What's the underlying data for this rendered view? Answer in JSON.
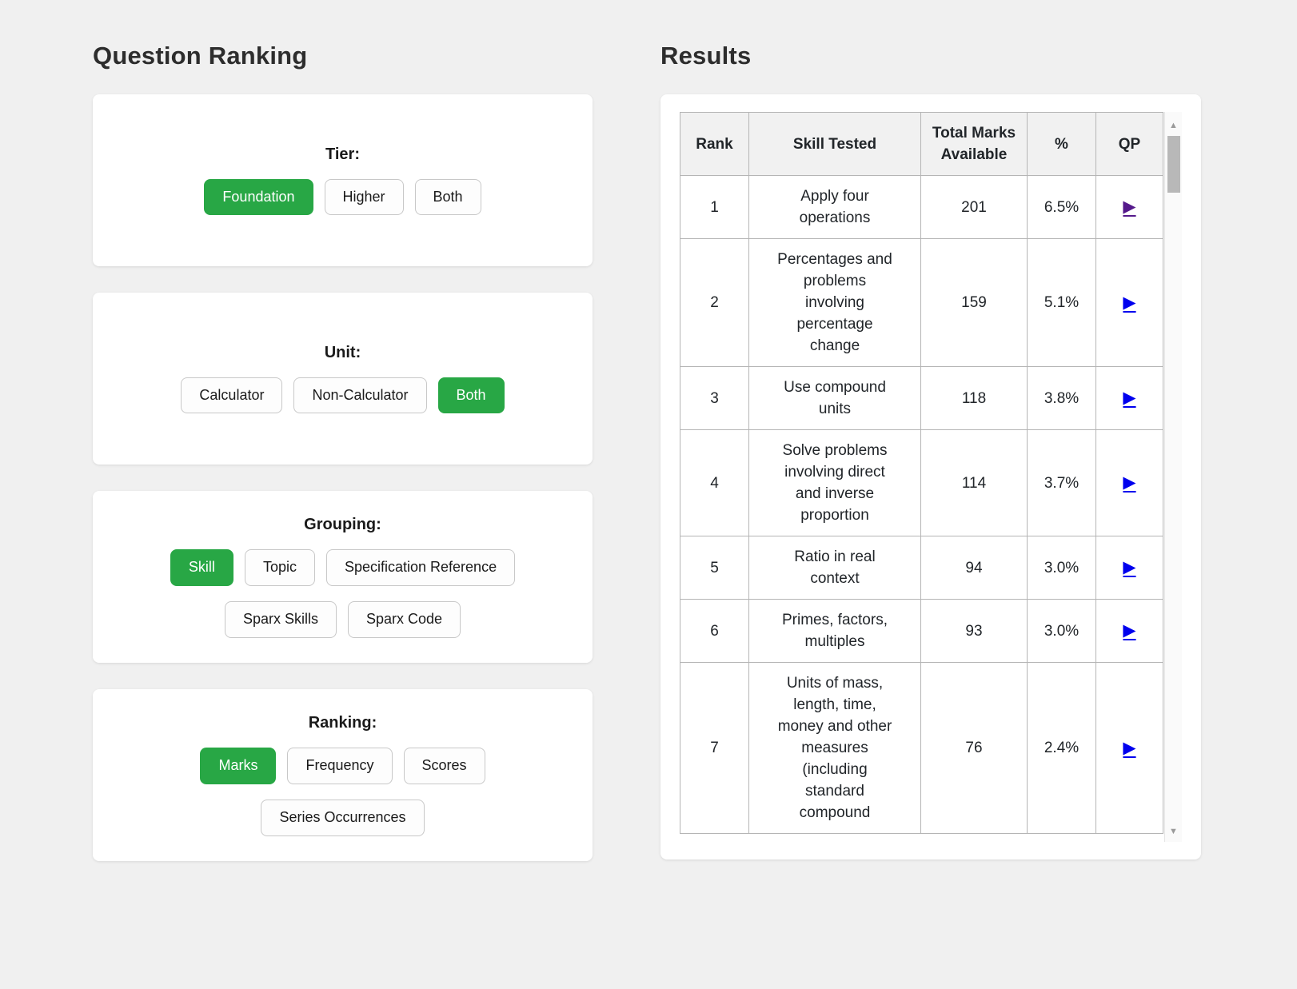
{
  "colors": {
    "page_background": "#f0f0f0",
    "accent_green": "#28a745",
    "link_blue": "#0000EE",
    "link_visited_purple": "#551A8B",
    "table_border": "#b5b5b5",
    "header_bg": "#f1f1f1"
  },
  "icons": {
    "play": "▶",
    "scroll_up": "▲",
    "scroll_down": "▼"
  },
  "left_panel": {
    "title": "Question Ranking",
    "groups": [
      {
        "label": "Tier:",
        "buttons": [
          {
            "label": "Foundation",
            "selected": true
          },
          {
            "label": "Higher",
            "selected": false
          },
          {
            "label": "Both",
            "selected": false
          }
        ]
      },
      {
        "label": "Unit:",
        "buttons": [
          {
            "label": "Calculator",
            "selected": false
          },
          {
            "label": "Non-Calculator",
            "selected": false
          },
          {
            "label": "Both",
            "selected": true
          }
        ]
      },
      {
        "label": "Grouping:",
        "buttons": [
          {
            "label": "Skill",
            "selected": true
          },
          {
            "label": "Topic",
            "selected": false
          },
          {
            "label": "Specification Reference",
            "selected": false
          },
          {
            "label": "Sparx Skills",
            "selected": false
          },
          {
            "label": "Sparx Code",
            "selected": false
          }
        ]
      },
      {
        "label": "Ranking:",
        "buttons": [
          {
            "label": "Marks",
            "selected": true
          },
          {
            "label": "Frequency",
            "selected": false
          },
          {
            "label": "Scores",
            "selected": false
          },
          {
            "label": "Series Occurrences",
            "selected": false
          }
        ]
      }
    ]
  },
  "results": {
    "title": "Results",
    "table": {
      "columns": [
        "Rank",
        "Skill Tested",
        "Total Marks Available",
        "%",
        "QP"
      ],
      "rows": [
        {
          "rank": "1",
          "skill": "Apply four operations",
          "marks": "201",
          "percent": "6.5%",
          "qp": "play-link",
          "qp_visited": true
        },
        {
          "rank": "2",
          "skill": "Percentages and problems involving percentage change",
          "marks": "159",
          "percent": "5.1%",
          "qp": "play-link",
          "qp_visited": false
        },
        {
          "rank": "3",
          "skill": "Use compound units",
          "marks": "118",
          "percent": "3.8%",
          "qp": "play-link",
          "qp_visited": false
        },
        {
          "rank": "4",
          "skill": "Solve problems involving direct and inverse proportion",
          "marks": "114",
          "percent": "3.7%",
          "qp": "play-link",
          "qp_visited": false
        },
        {
          "rank": "5",
          "skill": "Ratio in real context",
          "marks": "94",
          "percent": "3.0%",
          "qp": "play-link",
          "qp_visited": false
        },
        {
          "rank": "6",
          "skill": "Primes, factors, multiples",
          "marks": "93",
          "percent": "3.0%",
          "qp": "play-link",
          "qp_visited": false
        },
        {
          "rank": "7",
          "skill": "Units of mass, length, time, money and other measures (including standard compound",
          "marks": "76",
          "percent": "2.4%",
          "qp": "play-link",
          "qp_visited": false
        }
      ]
    }
  }
}
